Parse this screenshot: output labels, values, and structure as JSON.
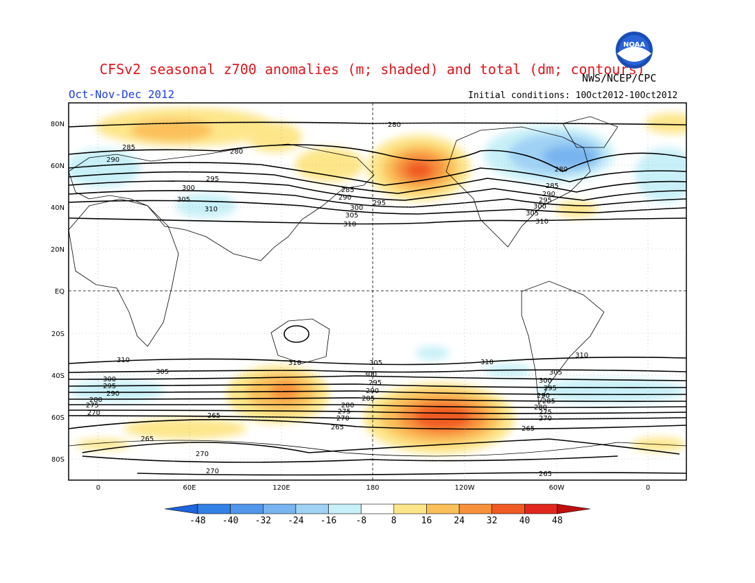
{
  "header": {
    "title": "CFSv2 seasonal z700 anomalies (m; shaded) and total (dm; contours)",
    "agency": "NWS/NCEP/CPC",
    "period": "Oct-Nov-Dec 2012",
    "initial_conditions": "Initial conditions: 10Oct2012-10Oct2012",
    "logo_text": "NOAA"
  },
  "map": {
    "projection": "cylindrical, centered on 180",
    "lon_ticks": [
      "0",
      "60E",
      "120E",
      "180",
      "120W",
      "60W",
      "0"
    ],
    "lat_ticks": [
      "80N",
      "60N",
      "40N",
      "20N",
      "EQ",
      "20S",
      "40S",
      "60S",
      "80S"
    ],
    "reference_lines": [
      "EQ",
      "180"
    ],
    "north_contour_labels": [
      "280",
      "285",
      "290",
      "295",
      "300",
      "305",
      "310"
    ],
    "south_contour_labels": [
      "310",
      "305",
      "300",
      "295",
      "290",
      "285",
      "280",
      "275",
      "270",
      "265"
    ]
  },
  "colorbar": {
    "labels": [
      "-48",
      "-40",
      "-32",
      "-24",
      "-16",
      "-8",
      "8",
      "16",
      "24",
      "32",
      "40",
      "48"
    ],
    "colors": [
      "#1e64dc",
      "#3282e6",
      "#5096eb",
      "#78b4f0",
      "#a0d2f5",
      "#c8f0f8",
      "#ffffff",
      "#fde68a",
      "#fbc05a",
      "#f7913c",
      "#f05a23",
      "#e1281e",
      "#be0f0f"
    ]
  },
  "anomaly_centers": [
    {
      "location": "Alaska / Bering Sea",
      "sign": "positive"
    },
    {
      "location": "Canada / Greenland",
      "sign": "negative"
    },
    {
      "location": "Arctic north of Siberia",
      "sign": "positive"
    },
    {
      "location": "South Pacific 60S",
      "sign": "positive"
    },
    {
      "location": "Southern Indian Ocean 50S",
      "sign": "positive"
    },
    {
      "location": "Southern Atlantic 50S",
      "sign": "negative"
    }
  ]
}
